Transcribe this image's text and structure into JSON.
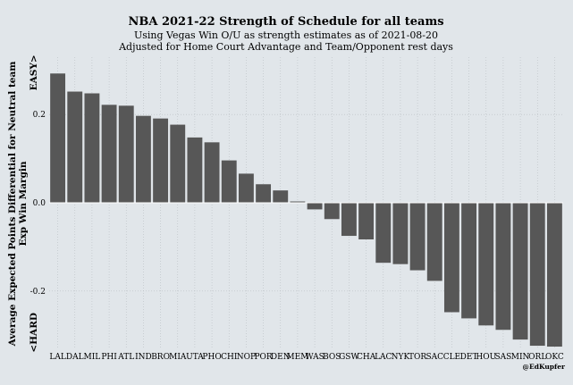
{
  "chart_data": {
    "type": "bar",
    "title": "NBA 2021-22 Strength of Schedule for all teams",
    "subtitle_lines": [
      "Using Vegas Win O/U as strength estimates as of 2021-08-20",
      "Adjusted for Home Court Advantage and Team/Opponent rest days"
    ],
    "ylabel_lines": [
      "Average Expected Points Differential for Neutral team",
      "Exp Win Margin",
      "<HARD                                                                    EASY>"
    ],
    "xlabel": "",
    "categories": [
      "LAL",
      "DAL",
      "MIL",
      "PHI",
      "ATL",
      "IND",
      "BRO",
      "MIA",
      "UTA",
      "PHO",
      "CHI",
      "NOP",
      "POR",
      "DEN",
      "MEM",
      "WAS",
      "BOS",
      "GSW",
      "CHA",
      "LAC",
      "NYK",
      "TOR",
      "SAC",
      "CLE",
      "DET",
      "HOU",
      "SAS",
      "MIN",
      "ORL",
      "OKC"
    ],
    "values": [
      0.293,
      0.252,
      0.248,
      0.222,
      0.22,
      0.197,
      0.191,
      0.177,
      0.148,
      0.137,
      0.096,
      0.066,
      0.042,
      0.028,
      0.003,
      -0.015,
      -0.037,
      -0.075,
      -0.083,
      -0.136,
      -0.139,
      -0.153,
      -0.177,
      -0.248,
      -0.262,
      -0.278,
      -0.288,
      -0.31,
      -0.324,
      -0.326
    ],
    "ylim": [
      -0.33,
      0.33
    ],
    "yticks": [
      -0.2,
      0.0,
      0.2
    ],
    "ytick_labels": [
      "-0.2",
      "0.0",
      "0.2"
    ],
    "grid": true,
    "bar_color": "#575757",
    "background_color": "#e1e6ea",
    "credit": "@EdKupfer"
  }
}
